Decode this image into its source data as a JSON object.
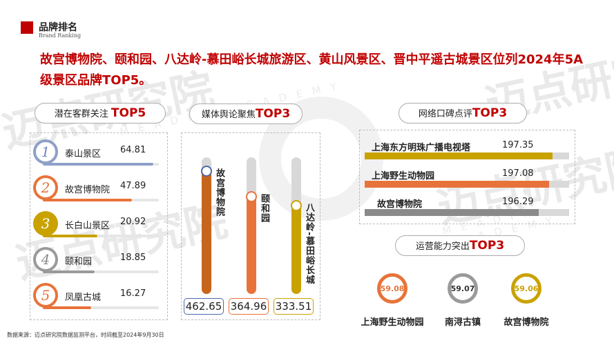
{
  "header": {
    "title_cn": "品牌排名",
    "title_en": "Brand Ranking"
  },
  "headline": "故宫博物院、颐和园、八达岭-慕田峪长城旅游区、黄山风景区、晋中平遥古城景区位列2024年5A级景区品牌TOP5。",
  "watermark": {
    "cn": "迈点研究院",
    "en": "MEADIN ACADEMY"
  },
  "potential": {
    "title": "潜在客群关注",
    "title_top": "TOP5",
    "items": [
      {
        "rank": "1",
        "name": "泰山景区",
        "value": "64.81",
        "score": 64.81,
        "color": "#8ea0c8",
        "num_color": "#6f86bd"
      },
      {
        "rank": "2",
        "name": "故宫博物院",
        "value": "47.89",
        "score": 47.89,
        "color": "#e8733a",
        "num_color": "#e8733a"
      },
      {
        "rank": "3",
        "name": "长白山景区",
        "value": "20.92",
        "score": 20.92,
        "color": "#c9a200",
        "num_color": "#ffffff"
      },
      {
        "rank": "4",
        "name": "颐和园",
        "value": "18.85",
        "score": 18.85,
        "color": "#9a9a9a",
        "num_color": "#8a8a8a"
      },
      {
        "rank": "5",
        "name": "凤凰古城",
        "value": "16.27",
        "score": 16.27,
        "color": "#e8733a",
        "num_color": "#e8733a"
      }
    ]
  },
  "media": {
    "title": "媒体舆论聚焦",
    "title_top": "TOP3",
    "items": [
      {
        "name": "故宫博物院",
        "value": "462.65",
        "score": 462.65,
        "color": "#c8651c",
        "dot": "#4a6aa8",
        "box": "#4a6aa8"
      },
      {
        "name": "颐和园",
        "value": "364.96",
        "score": 364.96,
        "color": "#e8733a",
        "dot": "#e8733a",
        "box": "#e8733a"
      },
      {
        "name": "八达岭-慕田峪长城",
        "value": "333.51",
        "score": 333.51,
        "color": "#c9a200",
        "dot": "#c9a200",
        "box": "#c9a200"
      }
    ]
  },
  "word": {
    "title": "网络口碑点评",
    "title_top": "TOP3",
    "items": [
      {
        "name": "上海东方明珠广播电视塔",
        "value": "197.35",
        "score": 197.35,
        "color": "#c9a200"
      },
      {
        "name": "上海野生动物园",
        "value": "197.08",
        "score": 197.08,
        "color": "#e8733a"
      },
      {
        "name": "故宫博物院",
        "value": "196.29",
        "score": 196.29,
        "color": "#8a8a8a"
      }
    ]
  },
  "ops": {
    "title": "运营能力突出",
    "title_top": "TOP3",
    "items": [
      {
        "name": "上海野生动物园",
        "value": "59.08",
        "color": "#e8733a"
      },
      {
        "name": "南浔古镇",
        "value": "59.07",
        "color": "#9a9a9a"
      },
      {
        "name": "故宫博物院",
        "value": "59.06",
        "color": "#c9a200"
      }
    ]
  },
  "footer": "数据来源：迈点研究院数据监测平台，时间截至2024年9月30日"
}
